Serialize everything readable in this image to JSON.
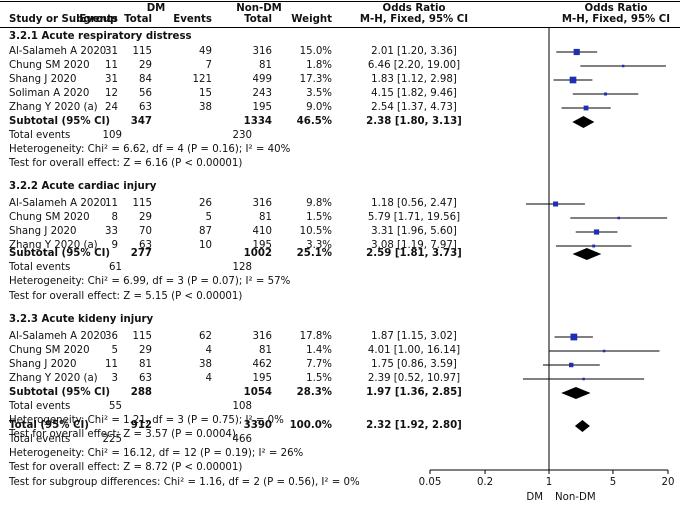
{
  "header": {
    "group_dm": "DM",
    "group_nondm": "Non-DM",
    "study_col": "Study or Subgroup",
    "events": "Events",
    "total": "Total",
    "weight": "Weight",
    "or_title": "Odds Ratio",
    "or_method": "M-H, Fixed, 95% CI",
    "plot_title": "Odds Ratio",
    "plot_method": "M-H, Fixed, 95% CI"
  },
  "groups": [
    {
      "title": "3.2.1 Acute respiratory distress",
      "studies": [
        {
          "name": "Al-Salameh A 2020",
          "dm_e": "31",
          "dm_t": "115",
          "nd_e": "49",
          "nd_t": "316",
          "weight": "15.0%",
          "ci": "2.01 [1.20, 3.36]",
          "or": 2.01,
          "lo": 1.2,
          "hi": 3.36
        },
        {
          "name": "Chung SM 2020",
          "dm_e": "11",
          "dm_t": "29",
          "nd_e": "7",
          "nd_t": "81",
          "weight": "1.8%",
          "ci": "6.46 [2.20, 19.00]",
          "or": 6.46,
          "lo": 2.2,
          "hi": 19.0
        },
        {
          "name": "Shang J 2020",
          "dm_e": "31",
          "dm_t": "84",
          "nd_e": "121",
          "nd_t": "499",
          "weight": "17.3%",
          "ci": "1.83 [1.12, 2.98]",
          "or": 1.83,
          "lo": 1.12,
          "hi": 2.98
        },
        {
          "name": "Soliman A 2020",
          "dm_e": "12",
          "dm_t": "56",
          "nd_e": "15",
          "nd_t": "243",
          "weight": "3.5%",
          "ci": "4.15 [1.82, 9.46]",
          "or": 4.15,
          "lo": 1.82,
          "hi": 9.46
        },
        {
          "name": "Zhang Y 2020 (a)",
          "dm_e": "24",
          "dm_t": "63",
          "nd_e": "38",
          "nd_t": "195",
          "weight": "9.0%",
          "ci": "2.54 [1.37, 4.73]",
          "or": 2.54,
          "lo": 1.37,
          "hi": 4.73
        }
      ],
      "subtotal": {
        "label": "Subtotal (95% CI)",
        "dm_t": "347",
        "nd_t": "1334",
        "weight": "46.5%",
        "ci": "2.38 [1.80, 3.13]",
        "or": 2.38,
        "lo": 1.8,
        "hi": 3.13
      },
      "total_events": {
        "label": "Total events",
        "dm": "109",
        "nd": "230"
      },
      "heterogeneity": "Heterogeneity: Chi² = 6.62, df = 4 (P = 0.16); I² = 40%",
      "overall": "Test for overall effect: Z = 6.16 (P < 0.00001)"
    },
    {
      "title": "3.2.2 Acute cardiac injury",
      "studies": [
        {
          "name": "Al-Salameh A 2020",
          "dm_e": "11",
          "dm_t": "115",
          "nd_e": "26",
          "nd_t": "316",
          "weight": "9.8%",
          "ci": "1.18 [0.56, 2.47]",
          "or": 1.18,
          "lo": 0.56,
          "hi": 2.47
        },
        {
          "name": "Chung SM 2020",
          "dm_e": "8",
          "dm_t": "29",
          "nd_e": "5",
          "nd_t": "81",
          "weight": "1.5%",
          "ci": "5.79 [1.71, 19.56]",
          "or": 5.79,
          "lo": 1.71,
          "hi": 19.56
        },
        {
          "name": "Shang J 2020",
          "dm_e": "33",
          "dm_t": "70",
          "nd_e": "87",
          "nd_t": "410",
          "weight": "10.5%",
          "ci": "3.31 [1.96, 5.60]",
          "or": 3.31,
          "lo": 1.96,
          "hi": 5.6
        },
        {
          "name": "Zhang Y 2020 (a)",
          "dm_e": "9",
          "dm_t": "63",
          "nd_e": "10",
          "nd_t": "195",
          "weight": "3.3%",
          "ci": "3.08 [1.19, 7.97]",
          "or": 3.08,
          "lo": 1.19,
          "hi": 7.97
        }
      ],
      "subtotal": {
        "label": "Subtotal (95% CI)",
        "dm_t": "277",
        "nd_t": "1002",
        "weight": "25.1%",
        "ci": "2.59 [1.81, 3.73]",
        "or": 2.59,
        "lo": 1.81,
        "hi": 3.73
      },
      "total_events": {
        "label": "Total events",
        "dm": "61",
        "nd": "128"
      },
      "heterogeneity": "Heterogeneity: Chi² = 6.99, df = 3 (P = 0.07); I² = 57%",
      "overall": "Test for overall effect: Z = 5.15 (P < 0.00001)"
    },
    {
      "title": "3.2.3 Acute kideny injury",
      "studies": [
        {
          "name": "Al-Salameh A 2020",
          "dm_e": "36",
          "dm_t": "115",
          "nd_e": "62",
          "nd_t": "316",
          "weight": "17.8%",
          "ci": "1.87 [1.15, 3.02]",
          "or": 1.87,
          "lo": 1.15,
          "hi": 3.02
        },
        {
          "name": "Chung SM 2020",
          "dm_e": "5",
          "dm_t": "29",
          "nd_e": "4",
          "nd_t": "81",
          "weight": "1.4%",
          "ci": "4.01 [1.00, 16.14]",
          "or": 4.01,
          "lo": 1.0,
          "hi": 16.14
        },
        {
          "name": "Shang J 2020",
          "dm_e": "11",
          "dm_t": "81",
          "nd_e": "38",
          "nd_t": "462",
          "weight": "7.7%",
          "ci": "1.75 [0.86, 3.59]",
          "or": 1.75,
          "lo": 0.86,
          "hi": 3.59
        },
        {
          "name": "Zhang Y 2020 (a)",
          "dm_e": "3",
          "dm_t": "63",
          "nd_e": "4",
          "nd_t": "195",
          "weight": "1.5%",
          "ci": "2.39 [0.52, 10.97]",
          "or": 2.39,
          "lo": 0.52,
          "hi": 10.97
        }
      ],
      "subtotal": {
        "label": "Subtotal (95% CI)",
        "dm_t": "288",
        "nd_t": "1054",
        "weight": "28.3%",
        "ci": "1.97 [1.36, 2.85]",
        "or": 1.97,
        "lo": 1.36,
        "hi": 2.85
      },
      "total_events": {
        "label": "Total events",
        "dm": "55",
        "nd": "108"
      },
      "heterogeneity": "Heterogeneity: Chi² = 1.21, df = 3 (P = 0.75); I² = 0%",
      "overall": "Test for overall effect: Z = 3.57 (P = 0.0004)"
    }
  ],
  "total": {
    "label": "Total (95% CI)",
    "dm_t": "912",
    "nd_t": "3390",
    "weight": "100.0%",
    "ci": "2.32 [1.92, 2.80]",
    "or": 2.32,
    "lo": 1.92,
    "hi": 2.8,
    "events_label": "Total events",
    "dm_e": "225",
    "nd_e": "466",
    "heterogeneity": "Heterogeneity: Chi² = 16.12, df = 12 (P = 0.19); I² = 26%",
    "overall": "Test for overall effect: Z = 8.72 (P < 0.00001)",
    "subgroup": "Test for subgroup differences: Chi² = 1.16, df = 2 (P = 0.56), I² = 0%"
  },
  "chart_data": {
    "type": "forest",
    "title": "Odds Ratio",
    "subtitle": "M-H, Fixed, 95% CI",
    "xscale": "log",
    "xlim": [
      0.05,
      20
    ],
    "ticks": [
      0.05,
      0.2,
      1,
      5,
      20
    ],
    "tick_labels": [
      "0.05",
      "0.2",
      "1",
      "5",
      "20"
    ],
    "favours_left": "DM",
    "favours_right": "Non-DM",
    "colors": {
      "square": "#1f2fb5",
      "diamond": "#000000",
      "line": "#000000"
    }
  }
}
